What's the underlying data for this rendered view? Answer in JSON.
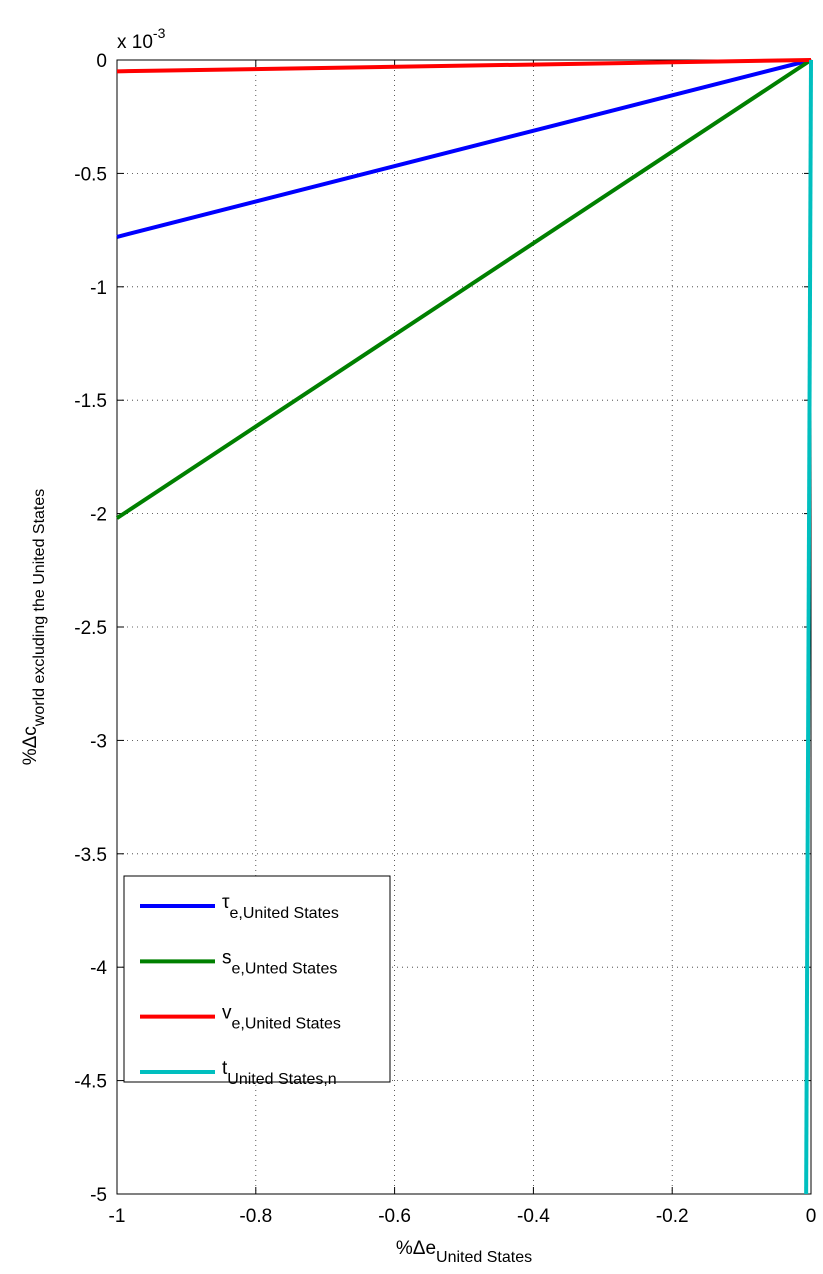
{
  "chart_data": {
    "type": "line",
    "multiplier": {
      "base": "x 10",
      "exponent": "-3"
    },
    "xlabel": {
      "main": "%Δe",
      "sub": "United States"
    },
    "ylabel": {
      "main": "%Δc",
      "sub": "world excluding the United States"
    },
    "xlim": [
      -1,
      0
    ],
    "ylim": [
      -5,
      0
    ],
    "xticks": [
      -1,
      -0.8,
      -0.6,
      -0.4,
      -0.2,
      0
    ],
    "yticks": [
      0,
      -0.5,
      -1,
      -1.5,
      -2,
      -2.5,
      -3,
      -3.5,
      -4,
      -4.5,
      -5
    ],
    "grid": true,
    "legend": "lower left",
    "series": [
      {
        "name": {
          "main": "τ",
          "sub": "e,United States"
        },
        "color": "#0000ff",
        "x": [
          -1,
          0
        ],
        "values": [
          -0.78,
          0
        ]
      },
      {
        "name": {
          "main": "s",
          "sub": "e,Unted States"
        },
        "color": "#008000",
        "x": [
          -1,
          0
        ],
        "values": [
          -2.02,
          0
        ]
      },
      {
        "name": {
          "main": "v",
          "sub": "e,United States"
        },
        "color": "#ff0000",
        "x": [
          -1,
          0
        ],
        "values": [
          -0.05,
          0
        ]
      },
      {
        "name": {
          "main": "t",
          "sub": "United States,n"
        },
        "color": "#00bfbf",
        "x": [
          -0.007,
          0
        ],
        "values": [
          -5,
          0
        ]
      }
    ]
  }
}
